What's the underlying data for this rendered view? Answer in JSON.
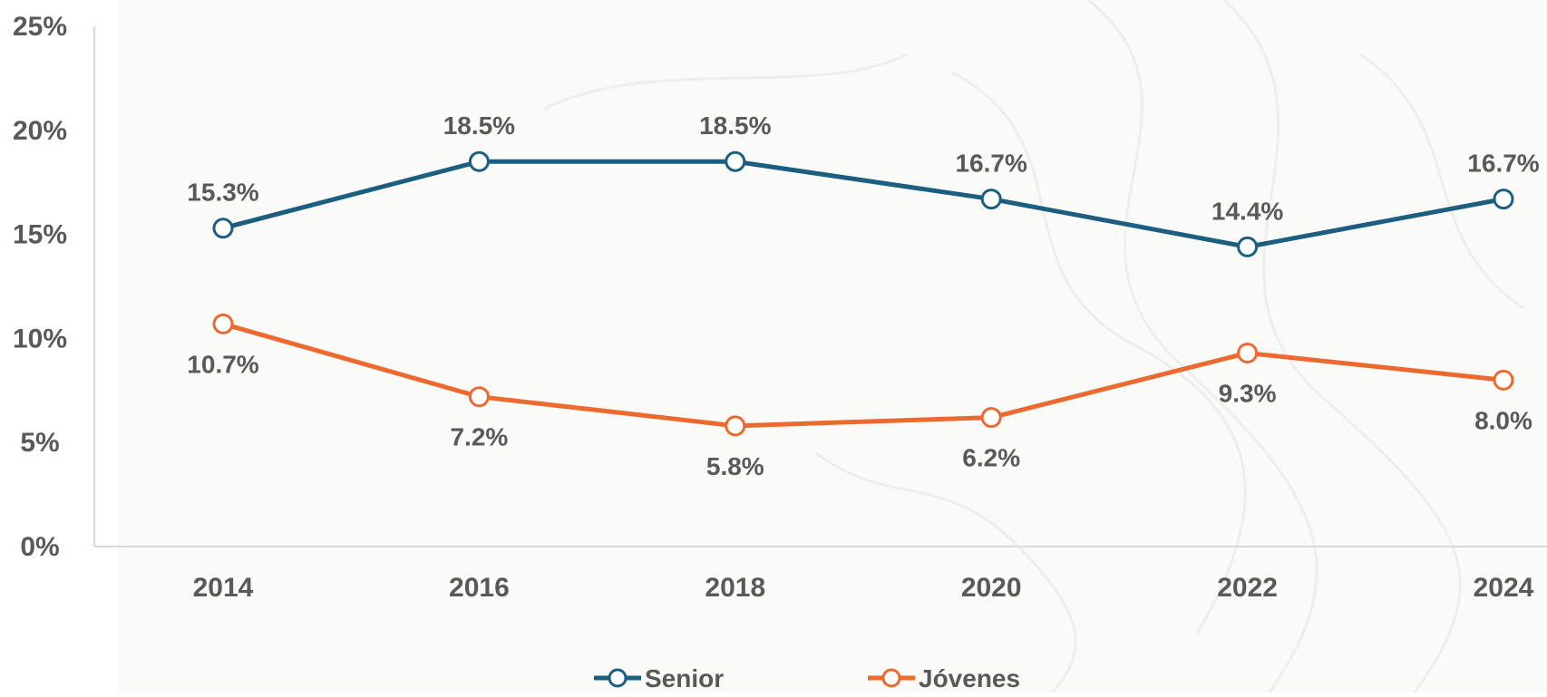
{
  "chart_data": {
    "type": "line",
    "title": "",
    "xlabel": "",
    "ylabel": "",
    "categories": [
      "2014",
      "2016",
      "2018",
      "2020",
      "2022",
      "2024"
    ],
    "ylim": [
      0,
      25
    ],
    "yticks": [
      0,
      5,
      10,
      15,
      20,
      25
    ],
    "ytick_labels": [
      "0%",
      "5%",
      "10%",
      "15%",
      "20%",
      "25%"
    ],
    "grid": false,
    "legend_position": "bottom",
    "series": [
      {
        "name": "Senior",
        "color": "#1b5e80",
        "values": [
          15.3,
          18.5,
          18.5,
          16.7,
          14.4,
          16.7
        ],
        "labels": [
          "15.3%",
          "18.5%",
          "18.5%",
          "16.7%",
          "14.4%",
          "16.7%"
        ],
        "label_position": "above"
      },
      {
        "name": "Jóvenes",
        "color": "#ec6a2f",
        "values": [
          10.7,
          7.2,
          5.8,
          6.2,
          9.3,
          8.0
        ],
        "labels": [
          "10.7%",
          "7.2%",
          "5.8%",
          "6.2%",
          "9.3%",
          "8.0%"
        ],
        "label_position": "below"
      }
    ]
  }
}
